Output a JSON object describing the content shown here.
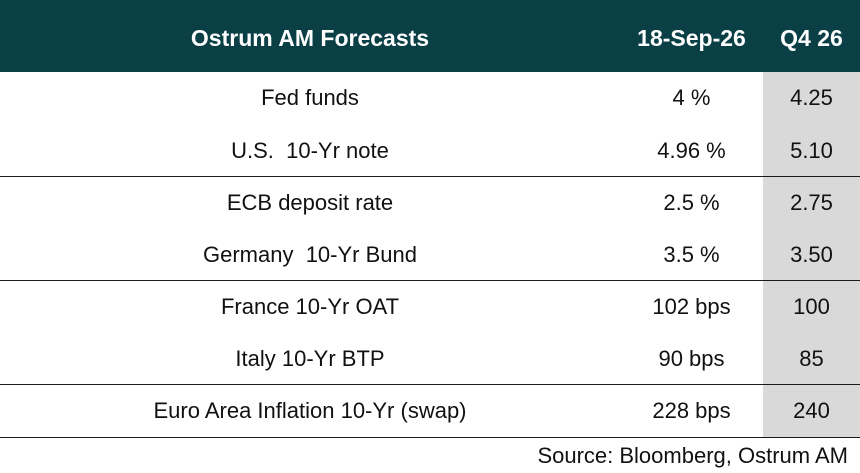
{
  "header": {
    "title": "Ostrum AM Forecasts",
    "col_date": "18-Sep-26",
    "col_q": "Q4 26"
  },
  "rows": [
    {
      "label": "Fed funds",
      "current": "4 %",
      "forecast": "4.25"
    },
    {
      "label": "U.S.  10-Yr note",
      "current": "4.96 %",
      "forecast": "5.10"
    },
    {
      "label": "ECB deposit rate",
      "current": "2.5 %",
      "forecast": "2.75"
    },
    {
      "label": "Germany  10-Yr Bund",
      "current": "3.5 %",
      "forecast": "3.50"
    },
    {
      "label": "France 10-Yr OAT",
      "current": "102 bps",
      "forecast": "100"
    },
    {
      "label": "Italy 10-Yr BTP",
      "current": "90 bps",
      "forecast": "85"
    },
    {
      "label": "Euro Area Inflation 10-Yr (swap)",
      "current": "228 bps",
      "forecast": "240"
    }
  ],
  "source": "Source: Bloomberg, Ostrum AM",
  "colors": {
    "header_bg": "#0b3f46",
    "header_text": "#ffffff",
    "forecast_column_bg": "#d9d9d9"
  }
}
